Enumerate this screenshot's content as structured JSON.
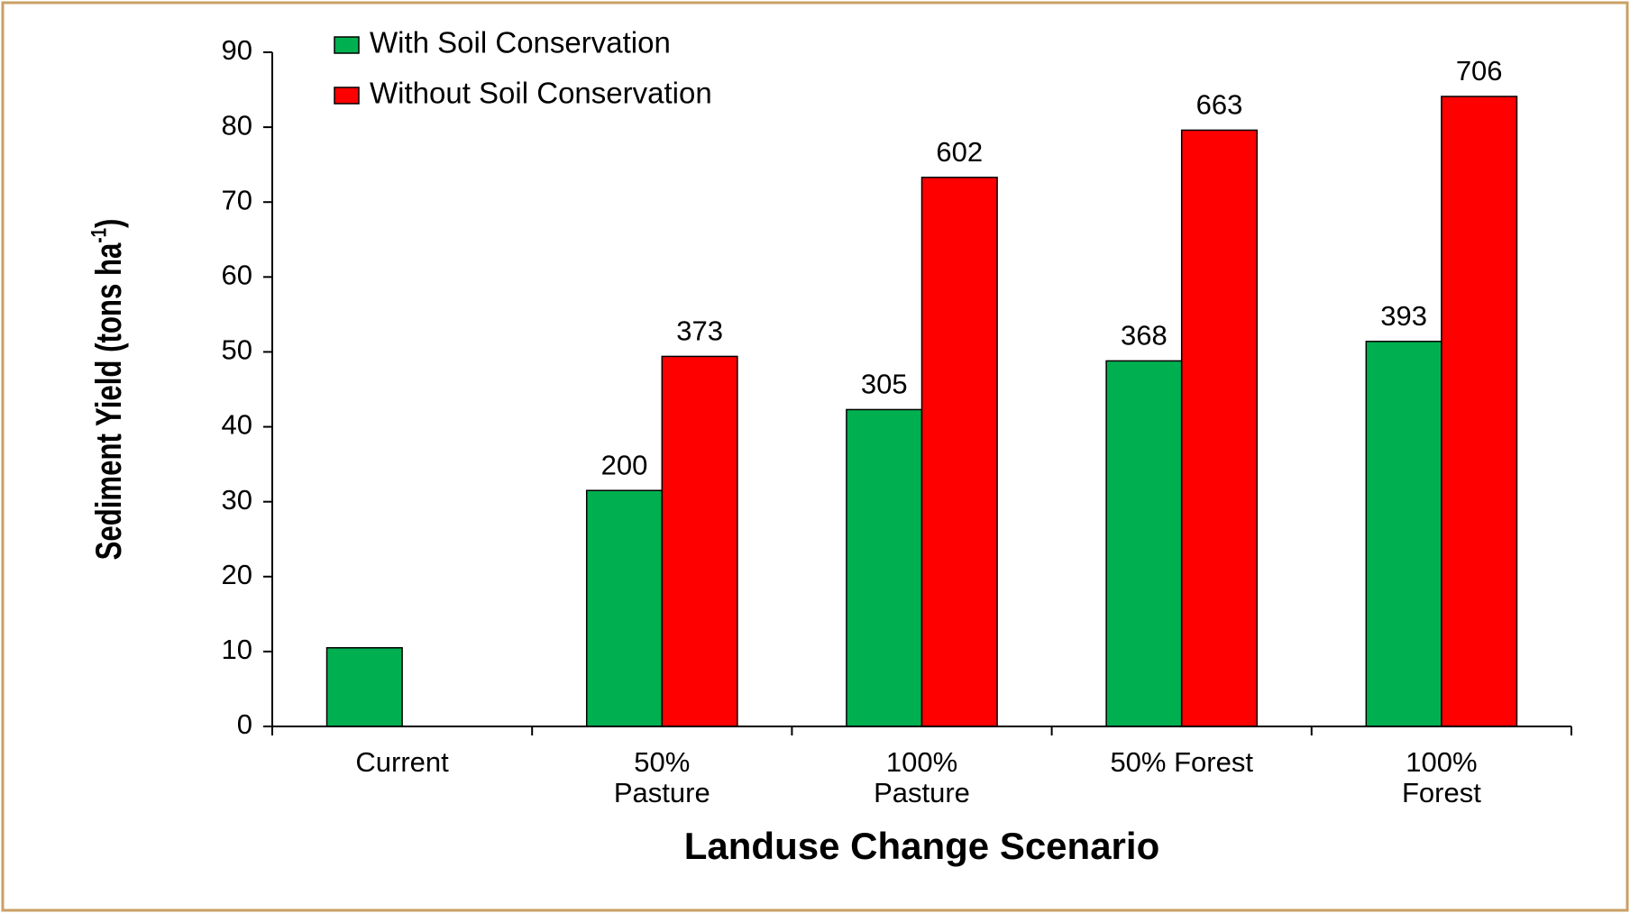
{
  "chart_data": {
    "type": "bar",
    "x_label": "Landuse Change Scenario",
    "y_label": [
      "Sediment Yield (tons ha",
      "-1",
      ")"
    ],
    "categories": [
      [
        "Current"
      ],
      [
        "50%",
        "Pasture"
      ],
      [
        "100%",
        "Pasture"
      ],
      [
        "50% Forest"
      ],
      [
        "100%",
        "Forest"
      ]
    ],
    "series": [
      {
        "name": "With Soil Conservation",
        "color": "#00b050",
        "values": [
          10.5,
          31.5,
          42.3,
          48.8,
          51.4
        ],
        "annotations": [
          null,
          "200",
          "305",
          "368",
          "393"
        ]
      },
      {
        "name": "Without Soil Conservation",
        "color": "#ff0000",
        "values": [
          null,
          49.4,
          73.3,
          79.6,
          84.1
        ],
        "annotations": [
          null,
          "373",
          "602",
          "663",
          "706"
        ]
      }
    ],
    "ylim": [
      0,
      90
    ],
    "yticks": [
      0,
      10,
      20,
      30,
      40,
      50,
      60,
      70,
      80,
      90
    ],
    "grid": false,
    "legend": "top-left"
  }
}
